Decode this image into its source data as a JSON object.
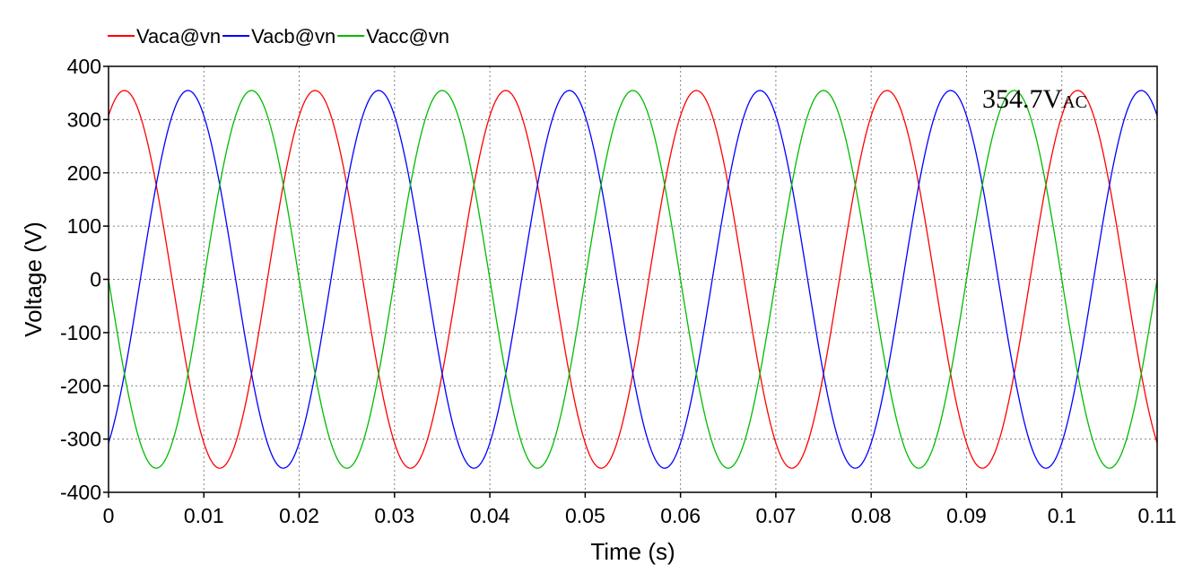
{
  "chart_data": {
    "type": "line",
    "title": "",
    "xlabel": "Time (s)",
    "ylabel": "Voltage (V)",
    "xlim": [
      0,
      0.11
    ],
    "ylim": [
      -400,
      400
    ],
    "x_ticks": [
      0,
      0.01,
      0.02,
      0.03,
      0.04,
      0.05,
      0.06,
      0.07,
      0.08,
      0.09,
      0.1,
      0.11
    ],
    "x_tick_labels": [
      "0",
      "0.01",
      "0.02",
      "0.03",
      "0.04",
      "0.05",
      "0.06",
      "0.07",
      "0.08",
      "0.09",
      "0.1",
      "0.11"
    ],
    "y_ticks": [
      -400,
      -300,
      -200,
      -100,
      0,
      100,
      200,
      300,
      400
    ],
    "y_tick_labels": [
      "-400",
      "-300",
      "-200",
      "-100",
      "0",
      "100",
      "200",
      "300",
      "400"
    ],
    "grid": true,
    "legend_position": "top-left",
    "frequency_hz": 50,
    "amplitude": 354.7,
    "series": [
      {
        "name": "Vaca@vn",
        "color": "#ff0000",
        "phase_deg": 60,
        "waveform": "amplitude * sin(2*pi*frequency*t + phase)"
      },
      {
        "name": "Vacb@vn",
        "color": "#0000ff",
        "phase_deg": -60,
        "waveform": "amplitude * sin(2*pi*frequency*t + phase)"
      },
      {
        "name": "Vacc@vn",
        "color": "#00bb00",
        "phase_deg": 180,
        "waveform": "amplitude * sin(2*pi*frequency*t + phase)"
      }
    ],
    "annotation": {
      "main": "354.7V",
      "sub": "AC"
    }
  }
}
